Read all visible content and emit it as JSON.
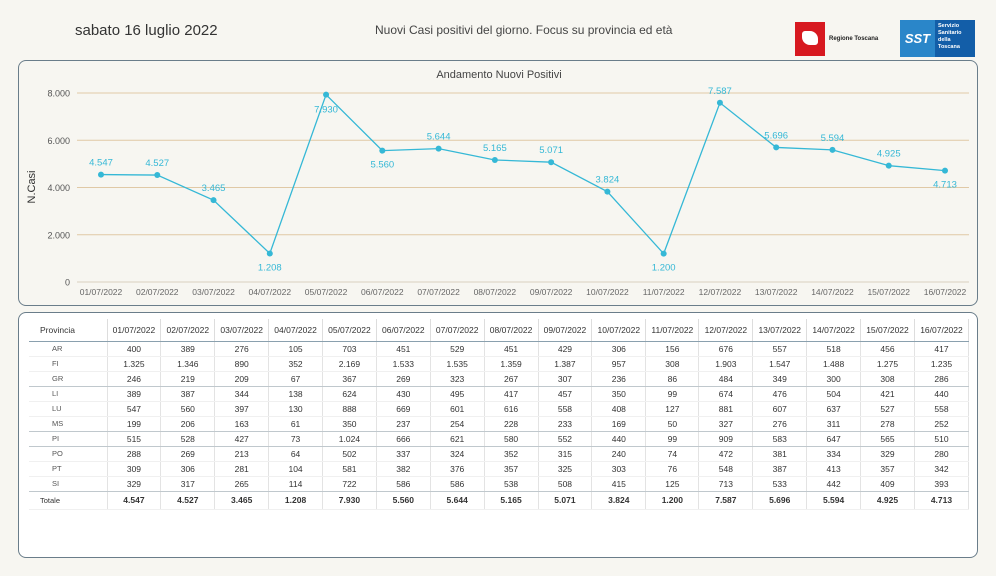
{
  "header": {
    "date": "sabato 16 luglio 2022",
    "title": "Nuovi Casi positivi del giorno. Focus su provincia ed età",
    "logo_regione": "Regione Toscana",
    "logo_sst_mark": "SST",
    "logo_sst_text": "Servizio Sanitario della Toscana"
  },
  "colors": {
    "line": "#35b8d6",
    "grid": "#e0c9a6",
    "panel_border": "#6a7d8a"
  },
  "chart_data": {
    "type": "line",
    "title": "Andamento Nuovi Positivi",
    "ylabel": "N.Casi",
    "xlabel": "",
    "ylim": [
      0,
      8000
    ],
    "yticks": [
      0,
      2000,
      4000,
      6000,
      8000
    ],
    "ytick_labels": [
      "0",
      "2.000",
      "4.000",
      "6.000",
      "8.000"
    ],
    "categories": [
      "01/07/2022",
      "02/07/2022",
      "03/07/2022",
      "04/07/2022",
      "05/07/2022",
      "06/07/2022",
      "07/07/2022",
      "08/07/2022",
      "09/07/2022",
      "10/07/2022",
      "11/07/2022",
      "12/07/2022",
      "13/07/2022",
      "14/07/2022",
      "15/07/2022",
      "16/07/2022"
    ],
    "values": [
      4547,
      4527,
      3465,
      1208,
      7930,
      5560,
      5644,
      5165,
      5071,
      3824,
      1200,
      7587,
      5696,
      5594,
      4925,
      4713
    ],
    "value_labels": [
      "4.547",
      "4.527",
      "3.465",
      "1.208",
      "7.930",
      "5.560",
      "5.644",
      "5.165",
      "5.071",
      "3.824",
      "1.200",
      "7.587",
      "5.696",
      "5.594",
      "4.925",
      "4.713"
    ],
    "grid": true,
    "legend": "none"
  },
  "table": {
    "header_label": "Provincia",
    "columns": [
      "01/07/2022",
      "02/07/2022",
      "03/07/2022",
      "04/07/2022",
      "05/07/2022",
      "06/07/2022",
      "07/07/2022",
      "08/07/2022",
      "09/07/2022",
      "10/07/2022",
      "11/07/2022",
      "12/07/2022",
      "13/07/2022",
      "14/07/2022",
      "15/07/2022",
      "16/07/2022"
    ],
    "rows": [
      {
        "name": "AR",
        "values": [
          "400",
          "389",
          "276",
          "105",
          "703",
          "451",
          "529",
          "451",
          "429",
          "306",
          "156",
          "676",
          "557",
          "518",
          "456",
          "417"
        ]
      },
      {
        "name": "FI",
        "values": [
          "1.325",
          "1.346",
          "890",
          "352",
          "2.169",
          "1.533",
          "1.535",
          "1.359",
          "1.387",
          "957",
          "308",
          "1.903",
          "1.547",
          "1.488",
          "1.275",
          "1.235"
        ]
      },
      {
        "name": "GR",
        "values": [
          "246",
          "219",
          "209",
          "67",
          "367",
          "269",
          "323",
          "267",
          "307",
          "236",
          "86",
          "484",
          "349",
          "300",
          "308",
          "286"
        ]
      },
      {
        "name": "LI",
        "values": [
          "389",
          "387",
          "344",
          "138",
          "624",
          "430",
          "495",
          "417",
          "457",
          "350",
          "99",
          "674",
          "476",
          "504",
          "421",
          "440"
        ]
      },
      {
        "name": "LU",
        "values": [
          "547",
          "560",
          "397",
          "130",
          "888",
          "669",
          "601",
          "616",
          "558",
          "408",
          "127",
          "881",
          "607",
          "637",
          "527",
          "558"
        ]
      },
      {
        "name": "MS",
        "values": [
          "199",
          "206",
          "163",
          "61",
          "350",
          "237",
          "254",
          "228",
          "233",
          "169",
          "50",
          "327",
          "276",
          "311",
          "278",
          "252"
        ]
      },
      {
        "name": "PI",
        "values": [
          "515",
          "528",
          "427",
          "73",
          "1.024",
          "666",
          "621",
          "580",
          "552",
          "440",
          "99",
          "909",
          "583",
          "647",
          "565",
          "510"
        ]
      },
      {
        "name": "PO",
        "values": [
          "288",
          "269",
          "213",
          "64",
          "502",
          "337",
          "324",
          "352",
          "315",
          "240",
          "74",
          "472",
          "381",
          "334",
          "329",
          "280"
        ]
      },
      {
        "name": "PT",
        "values": [
          "309",
          "306",
          "281",
          "104",
          "581",
          "382",
          "376",
          "357",
          "325",
          "303",
          "76",
          "548",
          "387",
          "413",
          "357",
          "342"
        ]
      },
      {
        "name": "SI",
        "values": [
          "329",
          "317",
          "265",
          "114",
          "722",
          "586",
          "586",
          "538",
          "508",
          "415",
          "125",
          "713",
          "533",
          "442",
          "409",
          "393"
        ]
      }
    ],
    "total": {
      "name": "Totale",
      "values": [
        "4.547",
        "4.527",
        "3.465",
        "1.208",
        "7.930",
        "5.560",
        "5.644",
        "5.165",
        "5.071",
        "3.824",
        "1.200",
        "7.587",
        "5.696",
        "5.594",
        "4.925",
        "4.713"
      ]
    }
  }
}
